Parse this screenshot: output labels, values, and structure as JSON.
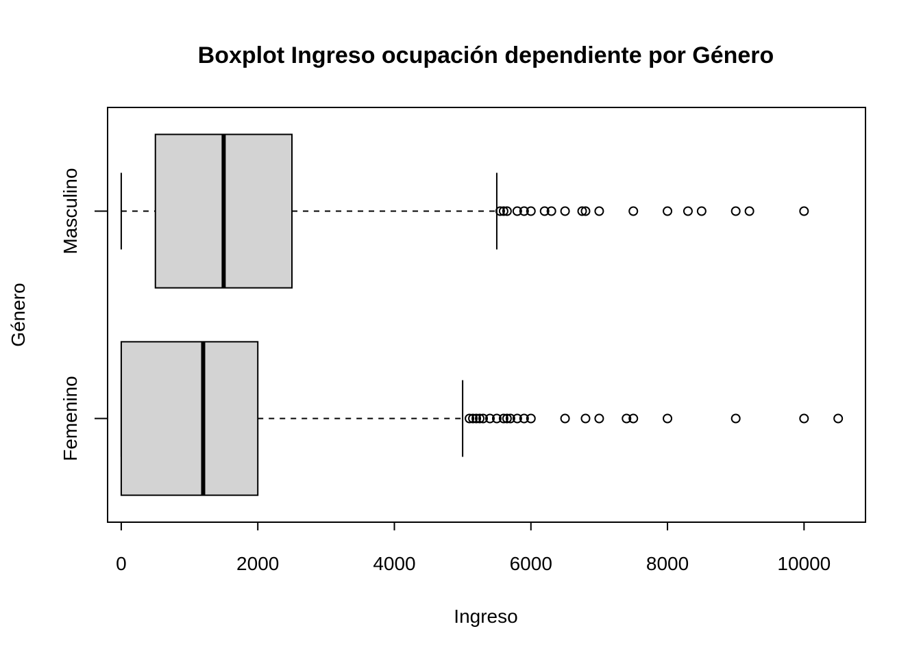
{
  "chart_data": {
    "type": "boxplot",
    "orientation": "horizontal",
    "title": "Boxplot Ingreso ocupación dependiente por Género",
    "xlabel": "Ingreso",
    "ylabel": "Género",
    "xlim": [
      -200,
      10900
    ],
    "xticks": [
      0,
      2000,
      4000,
      6000,
      8000,
      10000
    ],
    "grid": false,
    "box_color": "#d3d3d3",
    "categories": [
      "Femenino",
      "Masculino"
    ],
    "series": [
      {
        "name": "Femenino",
        "whisker_low": 0,
        "q1": 0,
        "median": 1200,
        "q3": 2000,
        "whisker_high": 5000,
        "outliers": [
          5100,
          5150,
          5200,
          5250,
          5300,
          5400,
          5500,
          5600,
          5650,
          5700,
          5800,
          5900,
          6000,
          6500,
          6800,
          7000,
          7400,
          7500,
          8000,
          9000,
          10000,
          10500
        ]
      },
      {
        "name": "Masculino",
        "whisker_low": 0,
        "q1": 500,
        "median": 1500,
        "q3": 2500,
        "whisker_high": 5500,
        "outliers": [
          5550,
          5600,
          5650,
          5800,
          5900,
          6000,
          6200,
          6300,
          6500,
          6750,
          6800,
          7000,
          7500,
          8000,
          8300,
          8500,
          9000,
          9200,
          10000
        ]
      }
    ]
  }
}
